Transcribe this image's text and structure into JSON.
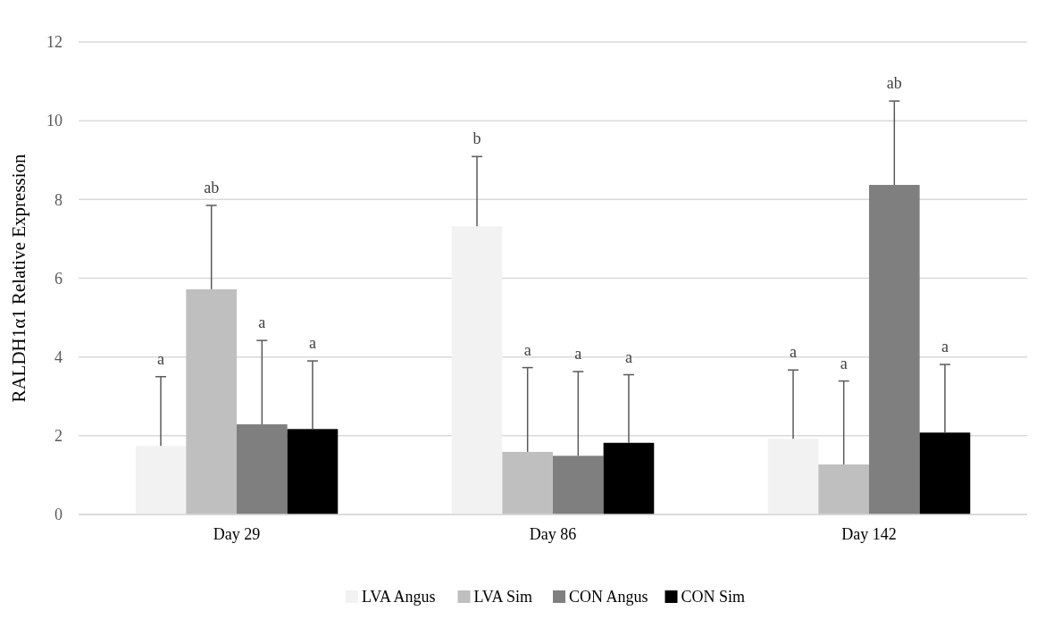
{
  "chart_data": {
    "type": "bar",
    "ylabel": "RALDH1α1 Relative Expression",
    "categories": [
      "Day 29",
      "Day 86",
      "Day 142"
    ],
    "series": [
      {
        "name": "LVA Angus",
        "color": "#f2f2f2",
        "values": [
          1.74,
          7.32,
          1.92
        ],
        "errors": [
          [
            1.74,
            3.5
          ],
          [
            7.32,
            9.09
          ],
          [
            1.92,
            3.67
          ]
        ]
      },
      {
        "name": "LVA Sim",
        "color": "#bfbfbf",
        "values": [
          5.72,
          1.59,
          1.27
        ],
        "errors": [
          [
            5.72,
            7.85
          ],
          [
            1.59,
            3.73
          ],
          [
            1.27,
            3.39
          ]
        ]
      },
      {
        "name": "CON Angus",
        "color": "#7f7f7f",
        "values": [
          2.29,
          1.49,
          8.37
        ],
        "errors": [
          [
            2.29,
            4.42
          ],
          [
            1.49,
            3.63
          ],
          [
            8.37,
            10.5
          ]
        ]
      },
      {
        "name": "CON Sim",
        "color": "#000000",
        "values": [
          2.17,
          1.82,
          2.08
        ],
        "errors": [
          [
            2.17,
            3.9
          ],
          [
            1.82,
            3.55
          ],
          [
            2.08,
            3.81
          ]
        ]
      }
    ],
    "annotations": [
      "a",
      "ab",
      "a",
      "a",
      "b",
      "a",
      "a",
      "a",
      "a",
      "a",
      "ab",
      "a"
    ],
    "ylim": [
      0,
      12
    ],
    "yticks": [
      0,
      2,
      4,
      6,
      8,
      10,
      12
    ],
    "grid": "y",
    "legend": "bottom"
  }
}
